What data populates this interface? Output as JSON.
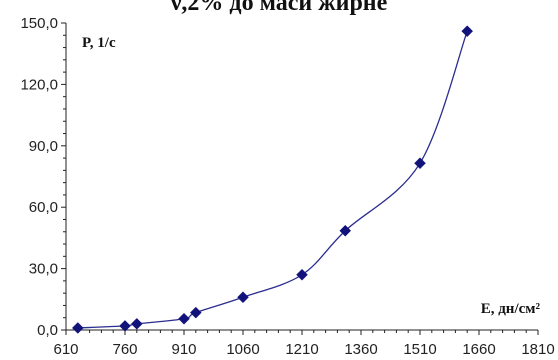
{
  "header_fragment": "ν,2% до маси жирне",
  "chart_data": {
    "type": "line",
    "title": "",
    "xlabel": "E, дн/см²",
    "ylabel": "P, 1/с",
    "xlim": [
      610,
      1810
    ],
    "ylim": [
      0,
      150
    ],
    "x_ticks": [
      "610",
      "760",
      "910",
      "1060",
      "1210",
      "1360",
      "1510",
      "1660",
      "1810"
    ],
    "y_ticks": [
      "0,0",
      "30,0",
      "60,0",
      "90,0",
      "120,0",
      "150,0"
    ],
    "grid": false,
    "legend": "none",
    "smooth": true,
    "marker": "diamond",
    "color": "#2b2d8f",
    "series": [
      {
        "x": [
          640,
          760,
          790,
          910,
          940,
          1060,
          1210,
          1320,
          1510,
          1630
        ],
        "y": [
          1.0,
          2.0,
          3.0,
          5.5,
          8.5,
          16.0,
          27.0,
          48.5,
          81.5,
          146.0
        ]
      }
    ]
  }
}
